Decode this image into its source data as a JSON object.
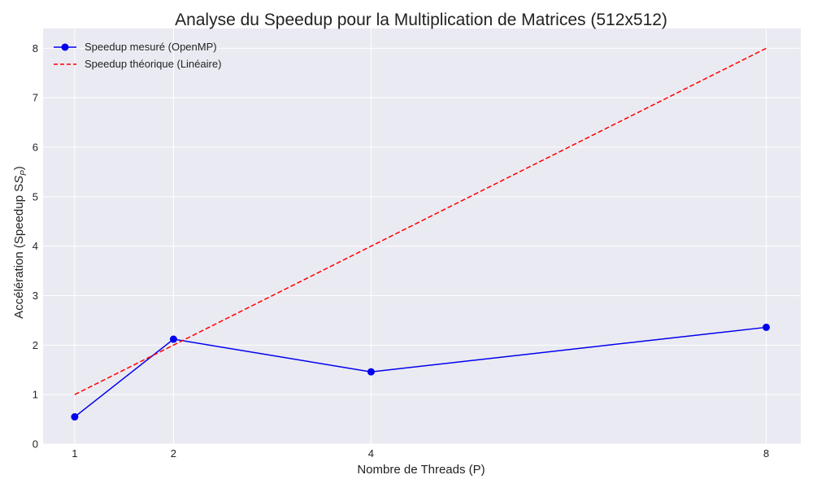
{
  "chart_data": {
    "type": "line",
    "title": "Analyse du Speedup pour la Multiplication de Matrices (512x512)",
    "xlabel": "Nombre de Threads (P)",
    "ylabel": "Accélération (Speedup S",
    "ylabel_subscript": "P",
    "ylabel_suffix": ")",
    "x": [
      1,
      2,
      4,
      8
    ],
    "xlim": [
      0.68,
      8.35
    ],
    "ylim": [
      0,
      8.4
    ],
    "xticks": [
      1,
      2,
      4,
      8
    ],
    "yticks": [
      0,
      1,
      2,
      3,
      4,
      5,
      6,
      7,
      8
    ],
    "grid": true,
    "legend_position": "top-left",
    "series": [
      {
        "name": "Speedup mesuré (OpenMP)",
        "values": [
          0.55,
          2.12,
          1.46,
          2.36
        ],
        "color": "#0000ee",
        "style": "solid",
        "marker": "circle"
      },
      {
        "name": "Speedup théorique (Linéaire)",
        "values": [
          1,
          2,
          4,
          8
        ],
        "color": "#ff0000",
        "style": "dashed",
        "marker": "none"
      }
    ],
    "background_color": "#eaeaf2"
  }
}
